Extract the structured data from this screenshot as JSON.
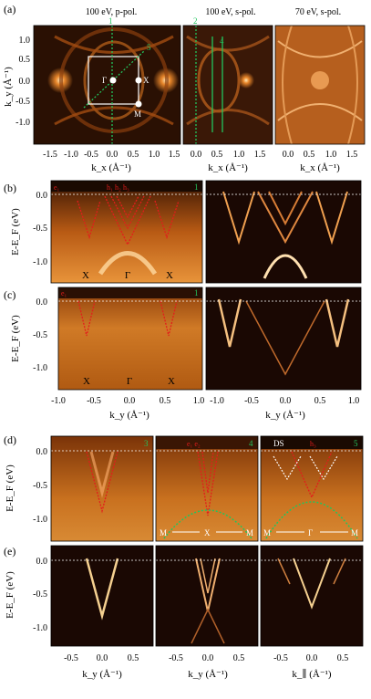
{
  "panels": {
    "a": {
      "label": "(a)",
      "headers": [
        "100 eV, p-pol.",
        "100 eV, s-pol.",
        "70 eV, s-pol."
      ],
      "ylabel": "k_y (Å⁻¹)",
      "xlabel": "k_x (Å⁻¹)",
      "yticks": [
        "1.0",
        "0.5",
        "0.0",
        "-0.5",
        "-1.0"
      ],
      "xticks_1": [
        "-1.5",
        "-1.0",
        "-0.5",
        "0.0",
        "0.5",
        "1.0",
        "1.5"
      ],
      "xticks_2": [
        "0.0",
        "0.5",
        "1.0",
        "1.5"
      ],
      "xticks_3": [
        "0.0",
        "0.5",
        "1.0",
        "1.5"
      ],
      "points": [
        "Γ",
        "X",
        "M"
      ],
      "cut_labels": [
        "1",
        "5",
        "2",
        "4"
      ]
    },
    "b": {
      "label": "(b)",
      "ylabel": "E-E_F (eV)",
      "yticks": [
        "0.0",
        "-0.5",
        "-1.0"
      ],
      "bands": [
        "e₁",
        "h₁",
        "h₂",
        "h₃"
      ],
      "cut": "1",
      "points": [
        "X",
        "Γ",
        "X"
      ]
    },
    "c": {
      "label": "(c)",
      "ylabel": "E-E_F (eV)",
      "yticks": [
        "0.0",
        "-0.5",
        "-1.0"
      ],
      "bands": [
        "e₁"
      ],
      "cut": "1",
      "points": [
        "X",
        "Γ",
        "X"
      ],
      "xlabel": "k_y (Å⁻¹)",
      "xticks": [
        "-1.0",
        "-0.5",
        "0.0",
        "0.5",
        "1.0"
      ]
    },
    "d": {
      "label": "(d)",
      "ylabel": "E-E_F (eV)",
      "yticks": [
        "0.0",
        "-0.5",
        "-1.0"
      ],
      "cuts": [
        "3",
        "4",
        "5"
      ],
      "bands_mid": "e₁ e₂",
      "bands_right": "h₃",
      "ds": "DS",
      "path_mid": [
        "M",
        "X",
        "M"
      ],
      "path_right": [
        "M",
        "Γ",
        "M"
      ]
    },
    "e": {
      "label": "(e)",
      "ylabel": "E-E_F (eV)",
      "yticks": [
        "0.0",
        "-0.5",
        "-1.0"
      ],
      "xlabels": [
        "k_y (Å⁻¹)",
        "k_y (Å⁻¹)",
        "k_∥ (Å⁻¹)"
      ],
      "xticks": [
        "-0.5",
        "0.0",
        "0.5"
      ]
    }
  }
}
